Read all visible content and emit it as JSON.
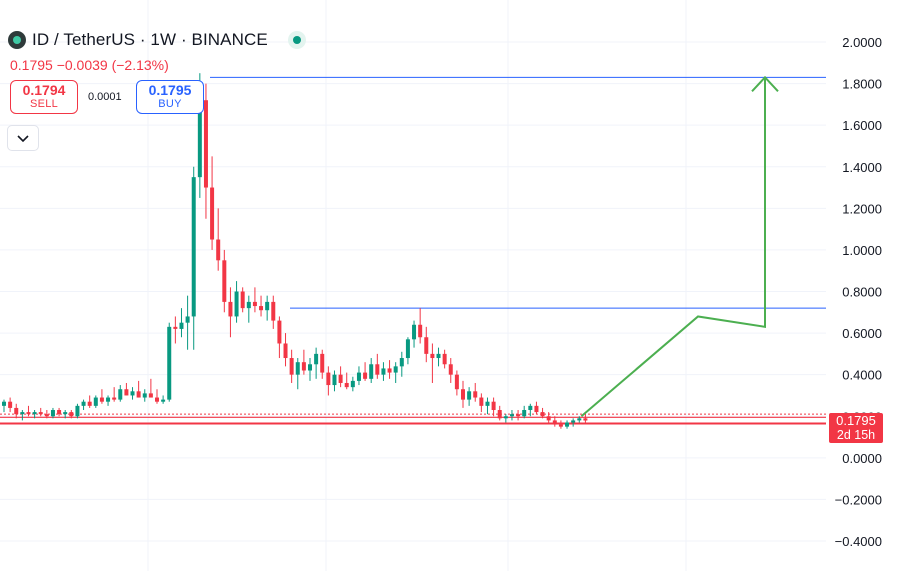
{
  "header": {
    "title": "ID / TetherUS · 1W · BINANCE",
    "quote": "0.1795  −0.0039 (−2.13%)"
  },
  "trade": {
    "sell_price": "0.1794",
    "sell_label": "SELL",
    "spread": "0.0001",
    "buy_price": "0.1795",
    "buy_label": "BUY"
  },
  "price_tag": {
    "price": "0.1795",
    "countdown": "2d 15h"
  },
  "colors": {
    "up": "#089981",
    "down": "#f23645",
    "line": "#2962ff",
    "arrow": "#4caf50",
    "grid": "#f0f3fa"
  },
  "chart_data": {
    "type": "candlestick",
    "y_axis": {
      "min": -0.48,
      "max": 2.05,
      "ticks": [
        2.0,
        1.8,
        1.6,
        1.4,
        1.2,
        1.0,
        0.8,
        0.6,
        0.4,
        0.2,
        0.0,
        -0.2,
        -0.4
      ],
      "tick_labels": [
        "2.0000",
        "1.8000",
        "1.6000",
        "1.4000",
        "1.2000",
        "1.0000",
        "0.8000",
        "0.6000",
        "0.4000",
        "0.2000",
        "0.0000",
        "−0.2000",
        "−0.4000"
      ]
    },
    "horizontal_lines": [
      1.83,
      0.72,
      0.21,
      0.195,
      0.165
    ],
    "candles": [
      [
        0.25,
        0.28,
        0.22,
        0.27
      ],
      [
        0.27,
        0.29,
        0.22,
        0.24
      ],
      [
        0.24,
        0.26,
        0.19,
        0.21
      ],
      [
        0.21,
        0.23,
        0.18,
        0.22
      ],
      [
        0.22,
        0.25,
        0.2,
        0.21
      ],
      [
        0.21,
        0.23,
        0.19,
        0.22
      ],
      [
        0.22,
        0.24,
        0.2,
        0.21
      ],
      [
        0.21,
        0.23,
        0.19,
        0.2
      ],
      [
        0.2,
        0.24,
        0.19,
        0.23
      ],
      [
        0.23,
        0.24,
        0.2,
        0.21
      ],
      [
        0.21,
        0.23,
        0.19,
        0.22
      ],
      [
        0.22,
        0.23,
        0.19,
        0.2
      ],
      [
        0.2,
        0.26,
        0.19,
        0.25
      ],
      [
        0.25,
        0.28,
        0.23,
        0.27
      ],
      [
        0.27,
        0.3,
        0.24,
        0.25
      ],
      [
        0.25,
        0.3,
        0.24,
        0.29
      ],
      [
        0.29,
        0.33,
        0.26,
        0.27
      ],
      [
        0.27,
        0.3,
        0.25,
        0.29
      ],
      [
        0.29,
        0.34,
        0.27,
        0.28
      ],
      [
        0.28,
        0.35,
        0.27,
        0.33
      ],
      [
        0.33,
        0.36,
        0.3,
        0.3
      ],
      [
        0.3,
        0.34,
        0.28,
        0.32
      ],
      [
        0.32,
        0.37,
        0.29,
        0.29
      ],
      [
        0.29,
        0.33,
        0.27,
        0.31
      ],
      [
        0.31,
        0.38,
        0.29,
        0.29
      ],
      [
        0.29,
        0.33,
        0.26,
        0.27
      ],
      [
        0.27,
        0.3,
        0.26,
        0.28
      ],
      [
        0.28,
        0.65,
        0.27,
        0.63
      ],
      [
        0.63,
        0.68,
        0.55,
        0.62
      ],
      [
        0.62,
        0.72,
        0.58,
        0.65
      ],
      [
        0.65,
        0.78,
        0.52,
        0.68
      ],
      [
        0.68,
        1.4,
        0.52,
        1.35
      ],
      [
        1.35,
        1.85,
        1.25,
        1.72
      ],
      [
        1.72,
        1.8,
        1.15,
        1.3
      ],
      [
        1.3,
        1.45,
        1.0,
        1.05
      ],
      [
        1.05,
        1.2,
        0.9,
        0.95
      ],
      [
        0.95,
        1.0,
        0.7,
        0.75
      ],
      [
        0.75,
        0.82,
        0.58,
        0.68
      ],
      [
        0.68,
        0.85,
        0.65,
        0.8
      ],
      [
        0.8,
        0.82,
        0.7,
        0.72
      ],
      [
        0.72,
        0.78,
        0.65,
        0.75
      ],
      [
        0.75,
        0.82,
        0.7,
        0.73
      ],
      [
        0.73,
        0.78,
        0.68,
        0.71
      ],
      [
        0.71,
        0.78,
        0.66,
        0.75
      ],
      [
        0.75,
        0.78,
        0.62,
        0.66
      ],
      [
        0.66,
        0.68,
        0.48,
        0.55
      ],
      [
        0.55,
        0.6,
        0.44,
        0.48
      ],
      [
        0.48,
        0.52,
        0.36,
        0.4
      ],
      [
        0.4,
        0.48,
        0.33,
        0.46
      ],
      [
        0.46,
        0.52,
        0.4,
        0.42
      ],
      [
        0.42,
        0.48,
        0.37,
        0.45
      ],
      [
        0.45,
        0.53,
        0.38,
        0.5
      ],
      [
        0.5,
        0.52,
        0.38,
        0.41
      ],
      [
        0.41,
        0.44,
        0.3,
        0.35
      ],
      [
        0.35,
        0.42,
        0.32,
        0.4
      ],
      [
        0.4,
        0.44,
        0.34,
        0.36
      ],
      [
        0.36,
        0.41,
        0.33,
        0.34
      ],
      [
        0.34,
        0.39,
        0.32,
        0.37
      ],
      [
        0.37,
        0.44,
        0.35,
        0.41
      ],
      [
        0.41,
        0.46,
        0.37,
        0.38
      ],
      [
        0.38,
        0.48,
        0.36,
        0.45
      ],
      [
        0.45,
        0.5,
        0.38,
        0.4
      ],
      [
        0.4,
        0.46,
        0.37,
        0.43
      ],
      [
        0.43,
        0.47,
        0.38,
        0.41
      ],
      [
        0.41,
        0.46,
        0.36,
        0.44
      ],
      [
        0.44,
        0.51,
        0.39,
        0.48
      ],
      [
        0.48,
        0.58,
        0.45,
        0.57
      ],
      [
        0.57,
        0.66,
        0.53,
        0.64
      ],
      [
        0.64,
        0.72,
        0.55,
        0.58
      ],
      [
        0.58,
        0.63,
        0.46,
        0.5
      ],
      [
        0.5,
        0.55,
        0.36,
        0.48
      ],
      [
        0.48,
        0.53,
        0.44,
        0.5
      ],
      [
        0.5,
        0.52,
        0.43,
        0.45
      ],
      [
        0.45,
        0.48,
        0.36,
        0.4
      ],
      [
        0.4,
        0.42,
        0.3,
        0.33
      ],
      [
        0.33,
        0.37,
        0.24,
        0.28
      ],
      [
        0.28,
        0.34,
        0.25,
        0.32
      ],
      [
        0.32,
        0.36,
        0.27,
        0.29
      ],
      [
        0.29,
        0.31,
        0.22,
        0.25
      ],
      [
        0.25,
        0.29,
        0.21,
        0.27
      ],
      [
        0.27,
        0.29,
        0.2,
        0.23
      ],
      [
        0.23,
        0.25,
        0.18,
        0.19
      ],
      [
        0.19,
        0.21,
        0.17,
        0.2
      ],
      [
        0.2,
        0.23,
        0.18,
        0.21
      ],
      [
        0.21,
        0.23,
        0.18,
        0.2
      ],
      [
        0.2,
        0.25,
        0.19,
        0.23
      ],
      [
        0.23,
        0.26,
        0.2,
        0.25
      ],
      [
        0.25,
        0.27,
        0.21,
        0.22
      ],
      [
        0.22,
        0.24,
        0.19,
        0.2
      ],
      [
        0.2,
        0.22,
        0.17,
        0.18
      ],
      [
        0.18,
        0.2,
        0.15,
        0.16
      ],
      [
        0.16,
        0.18,
        0.14,
        0.15
      ],
      [
        0.15,
        0.18,
        0.14,
        0.17
      ],
      [
        0.17,
        0.19,
        0.15,
        0.18
      ],
      [
        0.18,
        0.2,
        0.17,
        0.19
      ],
      [
        0.19,
        0.21,
        0.17,
        0.1795
      ]
    ],
    "projection_arrow": [
      [
        0.2,
        0.2
      ],
      [
        0.2,
        0.68
      ],
      [
        0.63,
        0.63
      ],
      [
        0.63,
        1.83
      ]
    ]
  }
}
